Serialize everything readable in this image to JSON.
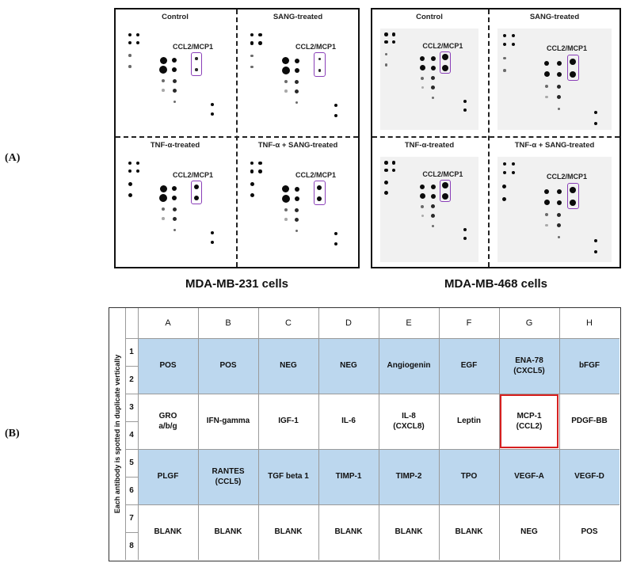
{
  "panel_labels": {
    "a": "(A)",
    "b": "(B)"
  },
  "blots": {
    "mdamb231": {
      "cell_label": "MDA-MB-231 cells",
      "quadrants": [
        {
          "title": "Control",
          "ccl_label": "CCL2/MCP1"
        },
        {
          "title": "SANG-treated",
          "ccl_label": "CCL2/MCP1"
        },
        {
          "title": "TNF-α-treated",
          "ccl_label": "CCL2/MCP1"
        },
        {
          "title": "TNF-α + SANG-treated",
          "ccl_label": "CCL2/MCP1"
        }
      ]
    },
    "mdamb468": {
      "cell_label": "MDA-MB-468 cells",
      "quadrants": [
        {
          "title": "Control",
          "ccl_label": "CCL2/MCP1"
        },
        {
          "title": "SANG-treated",
          "ccl_label": "CCL2/MCP1"
        },
        {
          "title": "TNF-α-treated",
          "ccl_label": "CCL2/MCP1"
        },
        {
          "title": "TNF-α + SANG-treated",
          "ccl_label": "CCL2/MCP1"
        }
      ]
    }
  },
  "array_map": {
    "side_caption": "Each antibody is spotted in duplicate vertically",
    "columns": [
      "A",
      "B",
      "C",
      "D",
      "E",
      "F",
      "G",
      "H"
    ],
    "row_numbers": [
      "1",
      "2",
      "3",
      "4",
      "5",
      "6",
      "7",
      "8"
    ],
    "rows": [
      {
        "cells": [
          "POS",
          "POS",
          "NEG",
          "NEG",
          "Angiogenin",
          "EGF",
          "ENA-78\n(CXCL5)",
          "bFGF"
        ]
      },
      {
        "cells": [
          "GRO\na/b/g",
          "IFN-gamma",
          "IGF-1",
          "IL-6",
          "IL-8\n(CXCL8)",
          "Leptin",
          "MCP-1\n(CCL2)",
          "PDGF-BB"
        ]
      },
      {
        "cells": [
          "PLGF",
          "RANTES\n(CCL5)",
          "TGF beta 1",
          "TIMP-1",
          "TIMP-2",
          "TPO",
          "VEGF-A",
          "VEGF-D"
        ]
      },
      {
        "cells": [
          "BLANK",
          "BLANK",
          "BLANK",
          "BLANK",
          "BLANK",
          "BLANK",
          "NEG",
          "POS"
        ]
      }
    ],
    "highlight_color": "#d62020",
    "band_color": "#bcd7ee"
  }
}
